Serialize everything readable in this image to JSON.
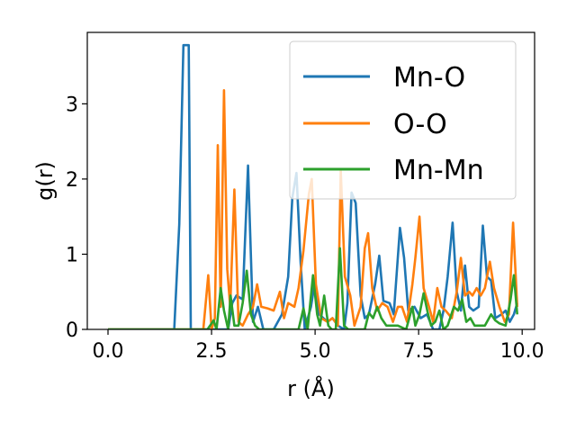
{
  "chart_data": {
    "type": "line",
    "xlabel": "r (Å)",
    "ylabel": "g(r)",
    "xlim": [
      -0.5,
      10.3
    ],
    "ylim": [
      0,
      3.95
    ],
    "xticks": [
      0.0,
      2.5,
      5.0,
      7.5,
      10.0
    ],
    "xtick_labels": [
      "0.0",
      "2.5",
      "5.0",
      "7.5",
      "10.0"
    ],
    "yticks": [
      0,
      1,
      2,
      3
    ],
    "ytick_labels": [
      "0",
      "1",
      "2",
      "3"
    ],
    "grid": false,
    "legend_position": "top-right",
    "series": [
      {
        "name": "Mn-O",
        "color": "#1f77b4",
        "points": [
          [
            0,
            0
          ],
          [
            1.6,
            0
          ],
          [
            1.72,
            1.4
          ],
          [
            1.82,
            3.78
          ],
          [
            1.95,
            3.78
          ],
          [
            2.0,
            0
          ],
          [
            2.9,
            0
          ],
          [
            3.0,
            0.35
          ],
          [
            3.1,
            0.45
          ],
          [
            3.25,
            0.4
          ],
          [
            3.38,
            2.18
          ],
          [
            3.5,
            0.1
          ],
          [
            3.62,
            0.3
          ],
          [
            3.75,
            0
          ],
          [
            4.0,
            0
          ],
          [
            4.2,
            0.2
          ],
          [
            4.35,
            0.7
          ],
          [
            4.45,
            1.75
          ],
          [
            4.55,
            2.08
          ],
          [
            4.65,
            0.9
          ],
          [
            4.75,
            0
          ],
          [
            4.9,
            0.3
          ],
          [
            5.0,
            0.65
          ],
          [
            5.1,
            0.2
          ],
          [
            5.3,
            0.1
          ],
          [
            5.42,
            0.15
          ],
          [
            5.55,
            0.05
          ],
          [
            5.7,
            0
          ],
          [
            5.78,
            0.35
          ],
          [
            5.88,
            1.82
          ],
          [
            5.98,
            1.68
          ],
          [
            6.1,
            0.45
          ],
          [
            6.2,
            0.15
          ],
          [
            6.3,
            0.2
          ],
          [
            6.45,
            0.6
          ],
          [
            6.55,
            0.98
          ],
          [
            6.65,
            0.38
          ],
          [
            6.8,
            0.35
          ],
          [
            6.9,
            0.2
          ],
          [
            7.05,
            1.35
          ],
          [
            7.15,
            0.95
          ],
          [
            7.25,
            0.25
          ],
          [
            7.4,
            0.3
          ],
          [
            7.55,
            0.15
          ],
          [
            7.7,
            0.2
          ],
          [
            7.85,
            0
          ],
          [
            8.0,
            0
          ],
          [
            8.1,
            0.25
          ],
          [
            8.2,
            0.7
          ],
          [
            8.32,
            1.42
          ],
          [
            8.42,
            0.5
          ],
          [
            8.52,
            0.25
          ],
          [
            8.62,
            0.85
          ],
          [
            8.72,
            0.3
          ],
          [
            8.82,
            0.25
          ],
          [
            8.95,
            0.3
          ],
          [
            9.05,
            1.38
          ],
          [
            9.15,
            0.7
          ],
          [
            9.25,
            0.65
          ],
          [
            9.35,
            0.15
          ],
          [
            9.5,
            0.2
          ],
          [
            9.6,
            0.25
          ],
          [
            9.7,
            0.1
          ],
          [
            9.8,
            0.2
          ],
          [
            9.88,
            0.35
          ]
        ]
      },
      {
        "name": "O-O",
        "color": "#ff7f0e",
        "points": [
          [
            0,
            0
          ],
          [
            2.3,
            0
          ],
          [
            2.42,
            0.72
          ],
          [
            2.5,
            0
          ],
          [
            2.58,
            0.15
          ],
          [
            2.65,
            2.45
          ],
          [
            2.72,
            0.3
          ],
          [
            2.8,
            3.18
          ],
          [
            2.88,
            0.8
          ],
          [
            2.95,
            0.3
          ],
          [
            3.05,
            1.86
          ],
          [
            3.15,
            0.1
          ],
          [
            3.25,
            0.05
          ],
          [
            3.38,
            0.2
          ],
          [
            3.5,
            0.3
          ],
          [
            3.6,
            0.6
          ],
          [
            3.7,
            0.3
          ],
          [
            3.85,
            0.28
          ],
          [
            4.0,
            0.25
          ],
          [
            4.15,
            0.5
          ],
          [
            4.25,
            0.15
          ],
          [
            4.35,
            0.35
          ],
          [
            4.5,
            0.3
          ],
          [
            4.6,
            0.55
          ],
          [
            4.72,
            1.05
          ],
          [
            4.85,
            1.8
          ],
          [
            4.92,
            2.0
          ],
          [
            5.02,
            0.6
          ],
          [
            5.15,
            0.15
          ],
          [
            5.3,
            0.1
          ],
          [
            5.42,
            0.15
          ],
          [
            5.55,
            0.05
          ],
          [
            5.62,
            2.12
          ],
          [
            5.72,
            0.7
          ],
          [
            5.85,
            0.45
          ],
          [
            5.95,
            0.05
          ],
          [
            6.1,
            0.3
          ],
          [
            6.2,
            1.08
          ],
          [
            6.28,
            1.28
          ],
          [
            6.38,
            0.55
          ],
          [
            6.5,
            0.25
          ],
          [
            6.62,
            0.35
          ],
          [
            6.75,
            0.3
          ],
          [
            6.88,
            0.1
          ],
          [
            7.0,
            0.3
          ],
          [
            7.1,
            0.3
          ],
          [
            7.22,
            0.1
          ],
          [
            7.35,
            0.6
          ],
          [
            7.42,
            0.95
          ],
          [
            7.52,
            1.5
          ],
          [
            7.62,
            0.55
          ],
          [
            7.75,
            0.3
          ],
          [
            7.85,
            0.1
          ],
          [
            7.95,
            0.55
          ],
          [
            8.05,
            0.3
          ],
          [
            8.15,
            0.25
          ],
          [
            8.3,
            0.15
          ],
          [
            8.42,
            0.5
          ],
          [
            8.52,
            0.95
          ],
          [
            8.62,
            0.45
          ],
          [
            8.72,
            0.5
          ],
          [
            8.8,
            0.45
          ],
          [
            8.9,
            0.55
          ],
          [
            9.0,
            0.45
          ],
          [
            9.1,
            0.55
          ],
          [
            9.22,
            0.9
          ],
          [
            9.32,
            0.55
          ],
          [
            9.45,
            0.3
          ],
          [
            9.58,
            0.1
          ],
          [
            9.68,
            0.2
          ],
          [
            9.78,
            1.42
          ],
          [
            9.88,
            0.3
          ]
        ]
      },
      {
        "name": "Mn-Mn",
        "color": "#2ca02c",
        "points": [
          [
            0,
            0
          ],
          [
            2.4,
            0
          ],
          [
            2.55,
            0.12
          ],
          [
            2.62,
            0
          ],
          [
            2.72,
            0.55
          ],
          [
            2.8,
            0.25
          ],
          [
            2.9,
            0
          ],
          [
            2.96,
            0.45
          ],
          [
            3.05,
            0.05
          ],
          [
            3.15,
            0.05
          ],
          [
            3.25,
            0.35
          ],
          [
            3.35,
            0.78
          ],
          [
            3.45,
            0.2
          ],
          [
            3.55,
            0.05
          ],
          [
            3.65,
            0
          ],
          [
            4.6,
            0
          ],
          [
            4.72,
            0.28
          ],
          [
            4.82,
            0
          ],
          [
            4.95,
            0.72
          ],
          [
            5.05,
            0.2
          ],
          [
            5.12,
            0.05
          ],
          [
            5.22,
            0.45
          ],
          [
            5.32,
            0.05
          ],
          [
            5.4,
            0
          ],
          [
            5.5,
            0
          ],
          [
            5.6,
            1.08
          ],
          [
            5.7,
            0.05
          ],
          [
            5.8,
            0
          ],
          [
            6.2,
            0
          ],
          [
            6.3,
            0.22
          ],
          [
            6.4,
            0.15
          ],
          [
            6.5,
            0.3
          ],
          [
            6.6,
            0.15
          ],
          [
            6.72,
            0.05
          ],
          [
            6.85,
            0.05
          ],
          [
            7.0,
            0.05
          ],
          [
            7.2,
            0
          ],
          [
            7.35,
            0.3
          ],
          [
            7.42,
            0.05
          ],
          [
            7.52,
            0.2
          ],
          [
            7.62,
            0.48
          ],
          [
            7.72,
            0.22
          ],
          [
            7.8,
            0.05
          ],
          [
            7.9,
            0.1
          ],
          [
            8.0,
            0.25
          ],
          [
            8.1,
            0
          ],
          [
            8.2,
            0.05
          ],
          [
            8.35,
            0.3
          ],
          [
            8.45,
            0.25
          ],
          [
            8.55,
            0.4
          ],
          [
            8.65,
            0.1
          ],
          [
            8.75,
            0.15
          ],
          [
            8.85,
            0.05
          ],
          [
            8.95,
            0.05
          ],
          [
            9.1,
            0.05
          ],
          [
            9.25,
            0.2
          ],
          [
            9.35,
            0.12
          ],
          [
            9.45,
            0.08
          ],
          [
            9.6,
            0.05
          ],
          [
            9.72,
            0.4
          ],
          [
            9.8,
            0.72
          ],
          [
            9.88,
            0.2
          ]
        ]
      }
    ]
  }
}
